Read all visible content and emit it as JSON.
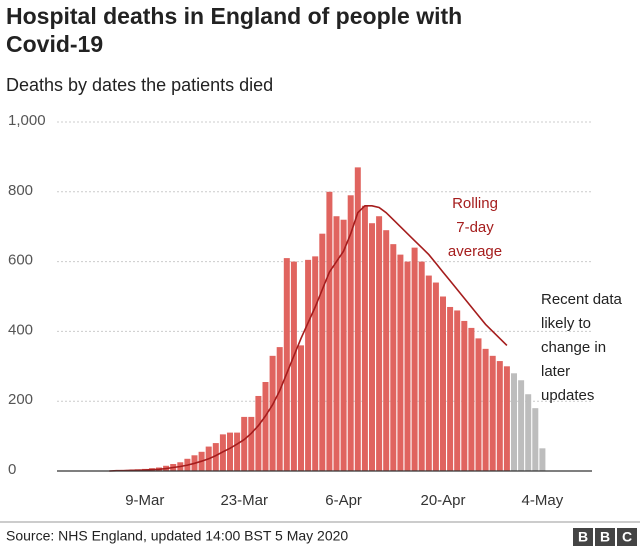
{
  "chart_data": {
    "type": "bar",
    "title": [
      "Hospital deaths in England of people with",
      "Covid-19"
    ],
    "subtitle": "Deaths by dates the patients died",
    "categories": [
      null,
      null,
      null,
      null,
      null,
      null,
      null,
      null,
      "9-Mar",
      null,
      null,
      null,
      null,
      null,
      null,
      null,
      null,
      null,
      null,
      null,
      null,
      null,
      "23-Mar",
      null,
      null,
      null,
      null,
      null,
      null,
      null,
      null,
      null,
      null,
      null,
      null,
      null,
      "6-Apr",
      null,
      null,
      null,
      null,
      null,
      null,
      null,
      null,
      null,
      null,
      null,
      null,
      null,
      "20-Apr",
      null,
      null,
      null,
      null,
      null,
      null,
      null,
      null,
      null,
      null,
      null,
      null,
      null,
      "4-May"
    ],
    "series": [
      {
        "color": "#e0645f",
        "values": [
          null,
          null,
          1,
          1,
          2,
          3,
          3,
          5,
          6,
          8,
          10,
          15,
          20,
          25,
          35,
          45,
          55,
          70,
          80,
          105,
          110,
          110,
          155,
          155,
          215,
          255,
          330,
          355,
          610,
          600,
          360,
          605,
          615,
          680,
          800,
          730,
          720,
          790,
          870,
          760,
          710,
          730,
          690,
          650,
          620,
          600,
          640,
          600,
          560,
          540,
          500,
          470,
          460,
          430,
          410,
          380,
          350,
          330,
          315,
          300,
          null,
          null,
          null,
          null,
          null
        ]
      },
      {
        "color": "#bdbdbd",
        "values": [
          null,
          null,
          null,
          null,
          null,
          null,
          null,
          null,
          null,
          null,
          null,
          null,
          null,
          null,
          null,
          null,
          null,
          null,
          null,
          null,
          null,
          null,
          null,
          null,
          null,
          null,
          null,
          null,
          null,
          null,
          null,
          null,
          null,
          null,
          null,
          null,
          null,
          null,
          null,
          null,
          null,
          null,
          null,
          null,
          null,
          null,
          null,
          null,
          null,
          null,
          null,
          null,
          null,
          null,
          null,
          null,
          null,
          null,
          null,
          null,
          280,
          260,
          220,
          180,
          65
        ]
      },
      {
        "type": "line",
        "color": "#a51d1d",
        "values": [
          null,
          null,
          null,
          0,
          1,
          1,
          2,
          2,
          3,
          4,
          5,
          7,
          10,
          13,
          17,
          22,
          28,
          35,
          44,
          55,
          65,
          77,
          90,
          108,
          130,
          158,
          190,
          230,
          280,
          330,
          380,
          425,
          470,
          520,
          570,
          600,
          630,
          680,
          740,
          760,
          760,
          755,
          740,
          720,
          700,
          680,
          660,
          640,
          620,
          595,
          570,
          545,
          520,
          495,
          470,
          445,
          420,
          400,
          380,
          360,
          null,
          null,
          null,
          null,
          null
        ]
      }
    ],
    "ylim": [
      0,
      1000
    ],
    "yticks": [
      0,
      200,
      400,
      600,
      800,
      {
        "value": 1000,
        "label": "1,000"
      }
    ],
    "grid": true,
    "annotations": [
      {
        "lines": [
          "Rolling",
          "7-day",
          "average"
        ],
        "color": "#a51d1d"
      },
      {
        "lines": [
          "Recent data",
          "likely to",
          "change in",
          "later",
          "updates"
        ],
        "color": "#222"
      }
    ],
    "source": "Source: NHS England, updated 14:00 BST 5 May 2020",
    "logo": [
      "B",
      "B",
      "C"
    ]
  }
}
